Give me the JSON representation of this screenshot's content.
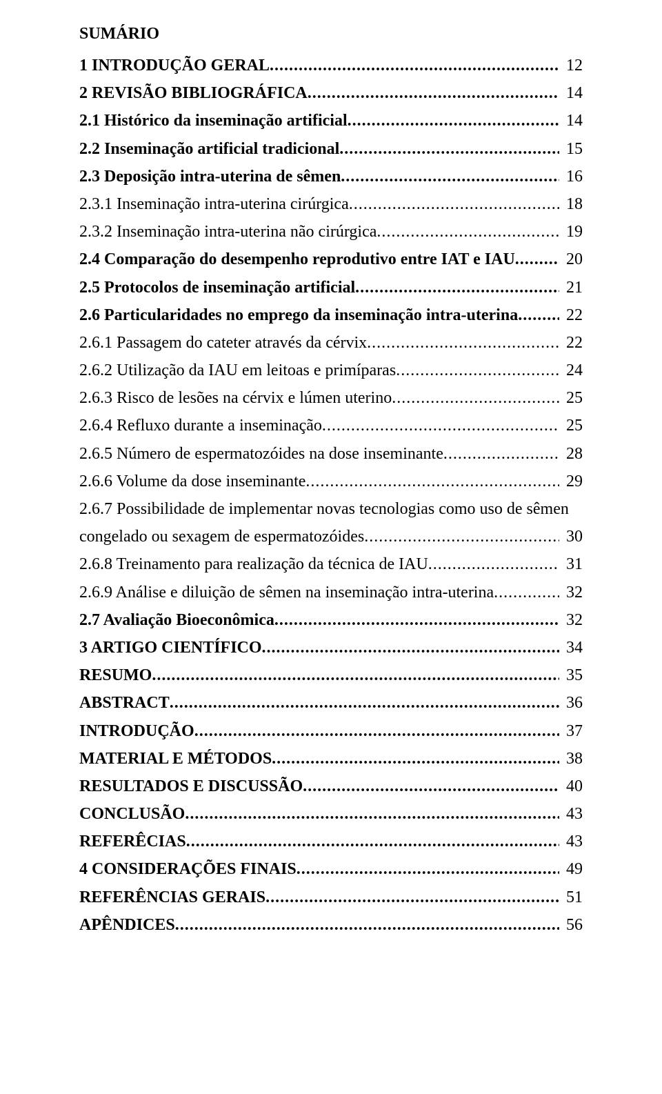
{
  "title": "SUMÁRIO",
  "dots": ".......................................................................................................................................................................................",
  "entries": [
    {
      "label": "1 INTRODUÇÃO GERAL",
      "page": "12",
      "bold": true
    },
    {
      "label": "2 REVISÃO BIBLIOGRÁFICA",
      "page": "14",
      "bold": true
    },
    {
      "label": "2.1 Histórico da inseminação artificial",
      "page": "14",
      "bold": true
    },
    {
      "label": "2.2 Inseminação artificial tradicional",
      "page": "15",
      "bold": true
    },
    {
      "label": "2.3 Deposição intra-uterina de sêmen",
      "page": "16",
      "bold": true
    },
    {
      "label": "2.3.1 Inseminação intra-uterina cirúrgica",
      "page": "18",
      "bold": false
    },
    {
      "label": "2.3.2 Inseminação intra-uterina não cirúrgica",
      "page": "19",
      "bold": false
    },
    {
      "label": "2.4 Comparação do desempenho reprodutivo entre IAT e IAU",
      "page": "20",
      "bold": true
    },
    {
      "label": "2.5 Protocolos de inseminação artificial",
      "page": "21",
      "bold": true
    },
    {
      "label": "2.6 Particularidades no emprego da inseminação intra-uterina",
      "page": "22",
      "bold": true
    },
    {
      "label": "2.6.1 Passagem do cateter através da cérvix",
      "page": "22",
      "bold": false
    },
    {
      "label": "2.6.2 Utilização da IAU em leitoas e primíparas",
      "page": "24",
      "bold": false
    },
    {
      "label": "2.6.3 Risco de lesões na cérvix e lúmen uterino",
      "page": "25",
      "bold": false
    },
    {
      "label": "2.6.4 Refluxo durante a inseminação",
      "page": "25",
      "bold": false
    },
    {
      "label": "2.6.5 Número de espermatozóides na dose inseminante",
      "page": "28",
      "bold": false
    },
    {
      "label": "2.6.6 Volume da dose inseminante",
      "page": "29",
      "bold": false
    },
    {
      "label": "2.6.7 Possibilidade de implementar novas tecnologias como uso de sêmen",
      "wrapLine": "congelado ou sexagem de espermatozóides",
      "page": "30",
      "bold": false
    },
    {
      "label": "2.6.8 Treinamento para realização da técnica de IAU",
      "page": "31",
      "bold": false
    },
    {
      "label": "2.6.9 Análise e diluição de sêmen na inseminação intra-uterina",
      "page": "32",
      "bold": false
    },
    {
      "label": "2.7 Avaliação Bioeconômica",
      "page": "32",
      "bold": true
    },
    {
      "label": "3 ARTIGO CIENTÍFICO",
      "page": "34",
      "bold": true
    },
    {
      "label": "RESUMO",
      "page": "35",
      "bold": true
    },
    {
      "label": "ABSTRACT",
      "page": "36",
      "bold": true
    },
    {
      "label": "INTRODUÇÃO",
      "page": "37",
      "bold": true
    },
    {
      "label": "MATERIAL E MÉTODOS",
      "page": "38",
      "bold": true
    },
    {
      "label": "RESULTADOS E DISCUSSÃO",
      "page": "40",
      "bold": true
    },
    {
      "label": "CONCLUSÃO",
      "page": "43",
      "bold": true
    },
    {
      "label": "REFERÊCIAS",
      "page": "43",
      "bold": true
    },
    {
      "label": "4 CONSIDERAÇÕES FINAIS",
      "page": "49",
      "bold": true
    },
    {
      "label": "REFERÊNCIAS GERAIS",
      "page": "51",
      "bold": true
    },
    {
      "label": "APÊNDICES",
      "page": "56",
      "bold": true
    }
  ]
}
